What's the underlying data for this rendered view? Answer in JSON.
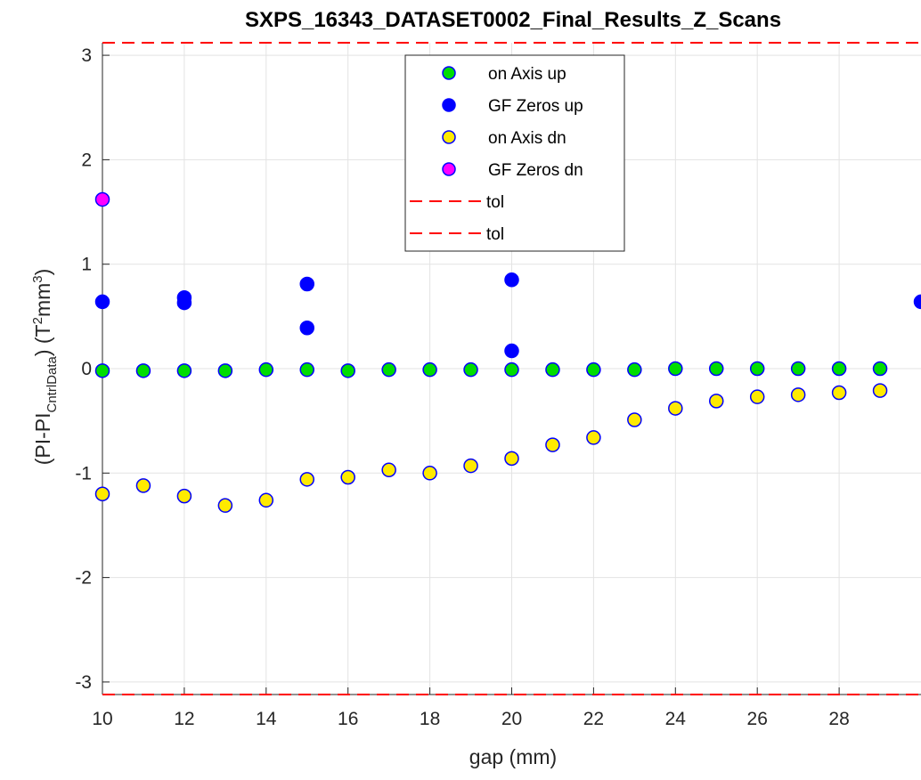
{
  "chart_data": {
    "type": "scatter",
    "title": "SXPS_16343_DATASET0002_Final_Results_Z_Scans",
    "xlabel": "gap (mm)",
    "ylabel": {
      "prefix": "(PI-PI",
      "subscript": "CntrlData",
      "middle": ") (T",
      "sup1": "2",
      "unit": "mm",
      "sup2": "3",
      "suffix": ")"
    },
    "xlim": [
      10,
      30
    ],
    "ylim": [
      -3.12,
      3.12
    ],
    "xticks": [
      10,
      12,
      14,
      16,
      18,
      20,
      22,
      24,
      26,
      28
    ],
    "yticks": [
      -3,
      -2,
      -1,
      0,
      1,
      2,
      3
    ],
    "grid": true,
    "legend_position": "top-center",
    "series": [
      {
        "name": "on Axis up",
        "color": "#00dd00",
        "edge": "#0000ff",
        "x": [
          10,
          11,
          12,
          13,
          14,
          15,
          16,
          17,
          18,
          19,
          20,
          21,
          22,
          23,
          24,
          25,
          26,
          27,
          28,
          29
        ],
        "y": [
          -0.02,
          -0.02,
          -0.02,
          -0.02,
          -0.01,
          -0.01,
          -0.02,
          -0.01,
          -0.01,
          -0.01,
          -0.01,
          -0.01,
          -0.01,
          -0.01,
          0.0,
          0.0,
          0.0,
          0.0,
          0.0,
          0.0
        ]
      },
      {
        "name": "GF Zeros up",
        "color": "#0000ff",
        "edge": "#0000ff",
        "x": [
          10,
          12,
          12,
          15,
          15,
          20,
          20,
          30
        ],
        "y": [
          0.64,
          0.68,
          0.63,
          0.81,
          0.39,
          0.85,
          0.17,
          0.64
        ]
      },
      {
        "name": "on Axis dn",
        "color": "#ffea00",
        "edge": "#0000ff",
        "x": [
          10,
          11,
          12,
          13,
          14,
          15,
          16,
          17,
          18,
          19,
          20,
          21,
          22,
          23,
          24,
          25,
          26,
          27,
          28,
          29
        ],
        "y": [
          -1.2,
          -1.12,
          -1.22,
          -1.31,
          -1.26,
          -1.06,
          -1.04,
          -0.97,
          -1.0,
          -0.93,
          -0.86,
          -0.73,
          -0.66,
          -0.49,
          -0.38,
          -0.31,
          -0.27,
          -0.25,
          -0.23,
          -0.21
        ]
      },
      {
        "name": "GF Zeros dn",
        "color": "#ff00ff",
        "edge": "#0000ff",
        "x": [
          10
        ],
        "y": [
          1.62
        ]
      }
    ],
    "reference_lines": [
      {
        "name": "tol",
        "y": 3.12,
        "color": "#ff0000",
        "style": "dashed"
      },
      {
        "name": "tol",
        "y": -3.12,
        "color": "#ff0000",
        "style": "dashed"
      }
    ]
  }
}
